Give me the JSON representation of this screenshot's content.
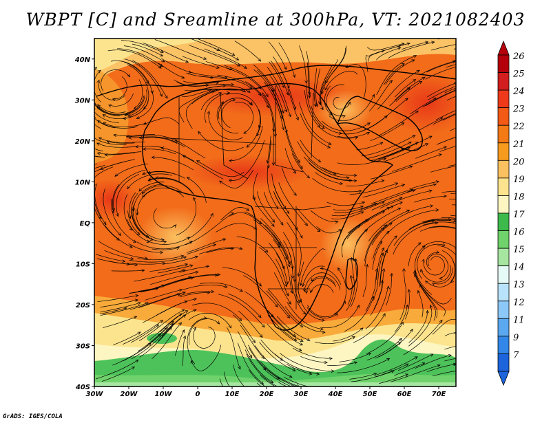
{
  "title": "WBPT [C] and Sreamline at 300hPa, VT: 2021082403",
  "footer": "GrADS: IGES/COLA",
  "map": {
    "lon_range": [
      -30,
      75
    ],
    "lat_range": [
      -40,
      45
    ],
    "x_ticks": [
      {
        "value": -30,
        "label": "30W"
      },
      {
        "value": -20,
        "label": "20W"
      },
      {
        "value": -10,
        "label": "10W"
      },
      {
        "value": 0,
        "label": "0"
      },
      {
        "value": 10,
        "label": "10E"
      },
      {
        "value": 20,
        "label": "20E"
      },
      {
        "value": 30,
        "label": "30E"
      },
      {
        "value": 40,
        "label": "40E"
      },
      {
        "value": 50,
        "label": "50E"
      },
      {
        "value": 60,
        "label": "60E"
      },
      {
        "value": 70,
        "label": "70E"
      }
    ],
    "y_ticks": [
      {
        "value": 40,
        "label": "40N"
      },
      {
        "value": 30,
        "label": "30N"
      },
      {
        "value": 20,
        "label": "20N"
      },
      {
        "value": 10,
        "label": "10N"
      },
      {
        "value": 0,
        "label": "EQ"
      },
      {
        "value": -10,
        "label": "10S"
      },
      {
        "value": -20,
        "label": "20S"
      },
      {
        "value": -30,
        "label": "30S"
      },
      {
        "value": -40,
        "label": "40S"
      }
    ]
  },
  "colorbar": {
    "labels": [
      "26",
      "25",
      "24",
      "23",
      "22",
      "21",
      "20",
      "19",
      "18",
      "17",
      "16",
      "15",
      "14",
      "13",
      "12",
      "11",
      "9",
      "7"
    ],
    "colors": [
      "#b4000a",
      "#d21e1e",
      "#ee3a1a",
      "#f25a16",
      "#f47a16",
      "#f79b1e",
      "#fbc060",
      "#fce48e",
      "#fdf6c2",
      "#3dba4b",
      "#6fd26a",
      "#a6e6a0",
      "#e6fbf6",
      "#b8e3fb",
      "#8cc8f8",
      "#5aa8f0",
      "#3287e8",
      "#1c64dc"
    ]
  }
}
